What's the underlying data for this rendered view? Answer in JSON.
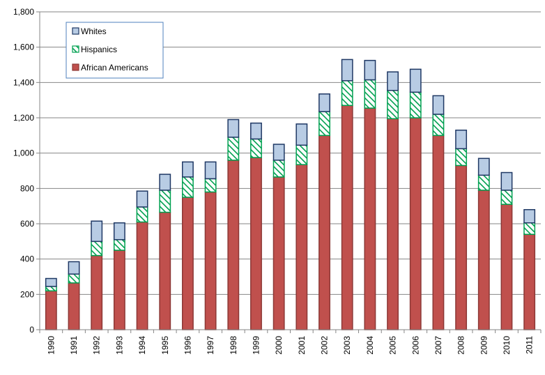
{
  "chart_data": {
    "type": "bar",
    "stacked": true,
    "title": "",
    "xlabel": "",
    "ylabel": "",
    "ylim": [
      0,
      1800
    ],
    "y_ticks": [
      "0",
      "200",
      "400",
      "600",
      "800",
      "1,000",
      "1,200",
      "1,400",
      "1,600",
      "1,800"
    ],
    "grid": "horizontal",
    "legend_position": "top-left",
    "categories": [
      "1990",
      "1991",
      "1992",
      "1993",
      "1994",
      "1995",
      "1996",
      "1997",
      "1998",
      "1999",
      "2000",
      "2001",
      "2002",
      "2003",
      "2004",
      "2005",
      "2006",
      "2007",
      "2008",
      "2009",
      "2010",
      "2011"
    ],
    "series": [
      {
        "name": "African Americans",
        "color": "#c0504d",
        "pattern": "solid",
        "values": [
          220,
          265,
          420,
          450,
          610,
          665,
          750,
          780,
          960,
          975,
          865,
          935,
          1100,
          1270,
          1255,
          1195,
          1200,
          1100,
          930,
          790,
          710,
          540
        ]
      },
      {
        "name": "Hispanics",
        "color": "#00a050",
        "pattern": "hatched",
        "values": [
          25,
          50,
          80,
          60,
          85,
          125,
          115,
          75,
          130,
          105,
          95,
          110,
          135,
          140,
          160,
          160,
          145,
          120,
          95,
          85,
          80,
          65
        ]
      },
      {
        "name": "Whites",
        "color": "#b8cce4",
        "pattern": "solid",
        "values": [
          45,
          70,
          115,
          95,
          90,
          90,
          85,
          95,
          100,
          90,
          90,
          120,
          100,
          120,
          110,
          105,
          130,
          105,
          105,
          95,
          100,
          75
        ]
      }
    ],
    "legend_order": [
      "Whites",
      "Hispanics",
      "African Americans"
    ]
  }
}
